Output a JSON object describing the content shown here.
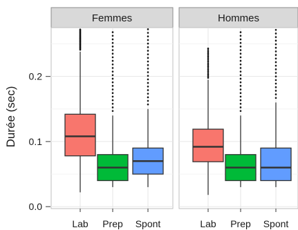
{
  "chart_data": {
    "type": "boxplot",
    "ylabel": "Durée (sec)",
    "yticks": [
      0.0,
      0.1,
      0.2
    ],
    "ytick_labels": [
      "0.0",
      "0.1",
      "0.2"
    ],
    "ylim": [
      -0.003,
      0.275
    ],
    "grid": true,
    "categories": [
      "Lab",
      "Prep",
      "Spont"
    ],
    "colors": {
      "Lab": "#f8766d",
      "Prep": "#00ba38",
      "Spont": "#619cff"
    },
    "facets": [
      {
        "label": "Femmes",
        "boxes": [
          {
            "category": "Lab",
            "whisker_low": 0.022,
            "q1": 0.078,
            "median": 0.108,
            "q3": 0.142,
            "whisker_high": 0.238,
            "outliers_from": 0.241,
            "outliers_to": 0.273,
            "outlier_step": 0.0012
          },
          {
            "category": "Prep",
            "whisker_low": 0.03,
            "q1": 0.04,
            "median": 0.06,
            "q3": 0.08,
            "whisker_high": 0.14,
            "outliers_from": 0.147,
            "outliers_to": 0.273,
            "outlier_step": 0.0055
          },
          {
            "category": "Spont",
            "whisker_low": 0.03,
            "q1": 0.05,
            "median": 0.07,
            "q3": 0.09,
            "whisker_high": 0.15,
            "outliers_from": 0.157,
            "outliers_to": 0.273,
            "outlier_step": 0.0055
          }
        ]
      },
      {
        "label": "Hommes",
        "boxes": [
          {
            "category": "Lab",
            "whisker_low": 0.018,
            "q1": 0.069,
            "median": 0.092,
            "q3": 0.119,
            "whisker_high": 0.195,
            "outliers_from": 0.198,
            "outliers_to": 0.245,
            "outlier_step": 0.0025
          },
          {
            "category": "Prep",
            "whisker_low": 0.03,
            "q1": 0.04,
            "median": 0.06,
            "q3": 0.08,
            "whisker_high": 0.14,
            "outliers_from": 0.147,
            "outliers_to": 0.273,
            "outlier_step": 0.0055
          },
          {
            "category": "Spont",
            "whisker_low": 0.03,
            "q1": 0.04,
            "median": 0.06,
            "q3": 0.09,
            "whisker_high": 0.16,
            "outliers_from": 0.167,
            "outliers_to": 0.273,
            "outlier_step": 0.0055
          }
        ]
      }
    ]
  }
}
